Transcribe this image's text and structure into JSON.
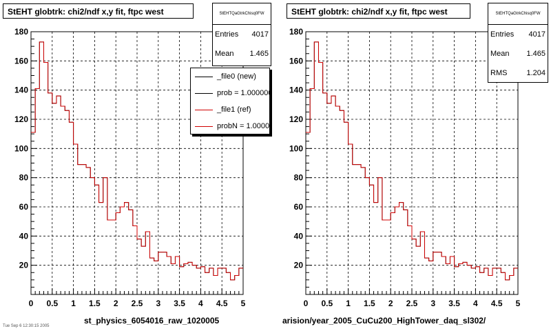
{
  "panels": [
    {
      "title": "StEHT globtrk: chi2/ndf x,y fit, ftpc west",
      "stats": {
        "name": "StEHTQaGtrkChisq0FW",
        "rows": [
          {
            "label": "Entries",
            "value": "4017"
          },
          {
            "label": "Mean",
            "value": "1.465"
          }
        ]
      },
      "legend": [
        {
          "text": "_file0 (new)",
          "color": "#000000"
        },
        {
          "text": "prob = 1.000000",
          "color": "#000000"
        },
        {
          "text": "_file1 (ref)",
          "color": "#d00000"
        },
        {
          "text": "probN = 1.000000",
          "color": "#d00000"
        }
      ],
      "footer": "st_physics_6054016_raw_1020005"
    },
    {
      "title": "StEHT globtrk: chi2/ndf x,y fit, ftpc west",
      "stats": {
        "name": "StEHTQaGtrkChisq0FW",
        "rows": [
          {
            "label": "Entries",
            "value": "4017"
          },
          {
            "label": "Mean",
            "value": "1.465"
          },
          {
            "label": "RMS",
            "value": "1.204"
          }
        ]
      },
      "legend": [],
      "footer": "arision/year_2005_CuCu200_HighTower_daq_sl302/"
    }
  ],
  "corner_text": "Tue Sep 6 12:30:15 2005",
  "chart_data": {
    "type": "histogram",
    "xlim": [
      0,
      5
    ],
    "ylim": [
      0,
      180
    ],
    "xticks": [
      "0",
      "0.5",
      "1",
      "1.5",
      "2",
      "2.5",
      "3",
      "3.5",
      "4",
      "4.5",
      "5"
    ],
    "yticks": [
      "20",
      "40",
      "60",
      "80",
      "100",
      "120",
      "140",
      "160",
      "180"
    ],
    "grid": true,
    "bin_width": 0.1,
    "series": [
      {
        "name": "_file0 (new)",
        "color": "#000000",
        "values": [
          111,
          141,
          173,
          159,
          138,
          131,
          136,
          129,
          126,
          118,
          103,
          89,
          89,
          87,
          80,
          75,
          63,
          80,
          51,
          51,
          56,
          60,
          63,
          58,
          47,
          38,
          33,
          43,
          25,
          23,
          29,
          29,
          26,
          21,
          26,
          19,
          21,
          22,
          20,
          18,
          19,
          15,
          18,
          13,
          18,
          18,
          15,
          10,
          13,
          18
        ]
      },
      {
        "name": "_file1 (ref)",
        "color": "#d00000",
        "values": [
          111,
          141,
          173,
          159,
          138,
          131,
          136,
          129,
          126,
          118,
          103,
          89,
          89,
          87,
          80,
          75,
          63,
          80,
          51,
          51,
          56,
          60,
          63,
          58,
          47,
          38,
          33,
          43,
          25,
          23,
          29,
          29,
          26,
          21,
          26,
          19,
          21,
          22,
          20,
          18,
          19,
          15,
          18,
          13,
          18,
          18,
          15,
          10,
          13,
          18
        ]
      }
    ]
  }
}
